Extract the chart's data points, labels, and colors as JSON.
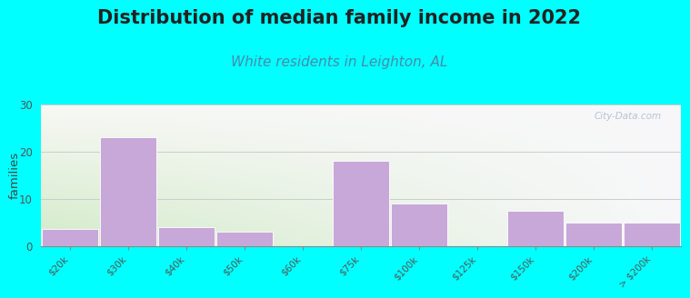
{
  "title": "Distribution of median family income in 2022",
  "subtitle": "White residents in Leighton, AL",
  "categories": [
    "$20k",
    "$30k",
    "$40k",
    "$50k",
    "$60k",
    "$75k",
    "$100k",
    "$125k",
    "$150k",
    "$200k",
    "> $200k"
  ],
  "values": [
    3.5,
    23,
    4,
    3,
    0,
    18,
    9,
    0,
    7.5,
    5,
    5
  ],
  "bar_color": "#c8a8d8",
  "bar_edge_color": "#ffffff",
  "background_color": "#00ffff",
  "plot_bg_color_top": "#f8f8f5",
  "plot_bg_color_bottom": "#d8ecd0",
  "ylabel": "families",
  "ylim": [
    0,
    30
  ],
  "yticks": [
    0,
    10,
    20,
    30
  ],
  "title_fontsize": 15,
  "title_color": "#222222",
  "subtitle_fontsize": 11,
  "subtitle_color": "#4a8aaa",
  "watermark": "City-Data.com",
  "watermark_color": "#aabbcc"
}
